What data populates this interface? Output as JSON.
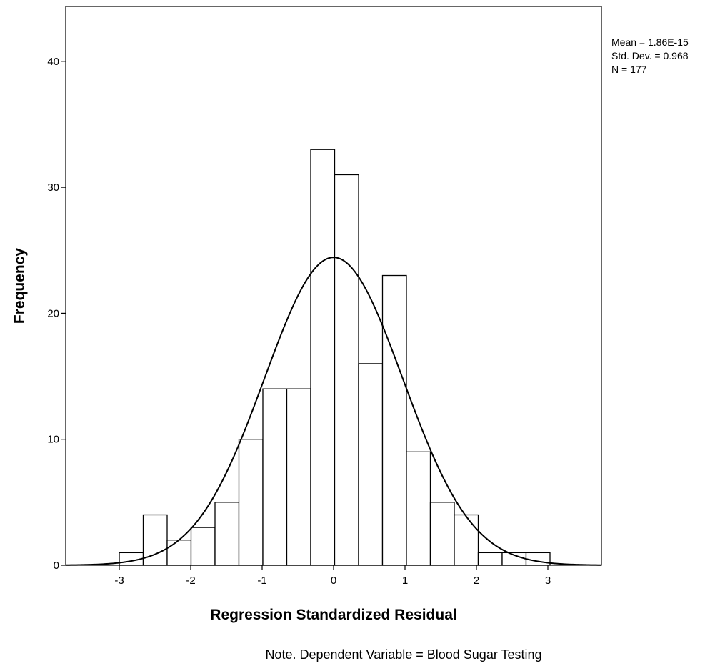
{
  "chart_data": {
    "type": "bar",
    "subtype": "histogram",
    "xlabel": "Regression Standardized Residual",
    "ylabel": "Frequency",
    "xlim": [
      -3.75,
      3.75
    ],
    "ylim": [
      0,
      44
    ],
    "x_ticks": [
      -3,
      -2,
      -1,
      0,
      1,
      2,
      3
    ],
    "x_tick_labels": [
      "-3",
      "-2",
      "-1",
      "0",
      "1",
      "2",
      "3"
    ],
    "y_ticks": [
      0,
      10,
      20,
      30,
      40
    ],
    "y_tick_labels": [
      "0",
      "10",
      "20",
      "30",
      "40"
    ],
    "bin_width": 0.335,
    "bins": [
      {
        "start": -3.0,
        "value": 1
      },
      {
        "start": -2.665,
        "value": 4
      },
      {
        "start": -2.33,
        "value": 2
      },
      {
        "start": -1.995,
        "value": 3
      },
      {
        "start": -1.66,
        "value": 5
      },
      {
        "start": -1.325,
        "value": 10
      },
      {
        "start": -0.99,
        "value": 14
      },
      {
        "start": -0.655,
        "value": 14
      },
      {
        "start": -0.32,
        "value": 33
      },
      {
        "start": 0.015,
        "value": 31
      },
      {
        "start": 0.35,
        "value": 16
      },
      {
        "start": 0.685,
        "value": 23
      },
      {
        "start": 1.02,
        "value": 9
      },
      {
        "start": 1.355,
        "value": 5
      },
      {
        "start": 1.69,
        "value": 4
      },
      {
        "start": 2.025,
        "value": 1
      },
      {
        "start": 2.36,
        "value": 1
      },
      {
        "start": 2.695,
        "value": 1
      }
    ],
    "normal_curve": {
      "mean": 0,
      "sd": 0.968,
      "n": 177
    },
    "grid": false,
    "legend": "none"
  },
  "stats": {
    "mean_label": "Mean = 1.86E-15",
    "sd_label": "Std. Dev. = 0.968",
    "n_label": "N = 177"
  },
  "note": "Note. Dependent Variable = Blood Sugar Testing"
}
